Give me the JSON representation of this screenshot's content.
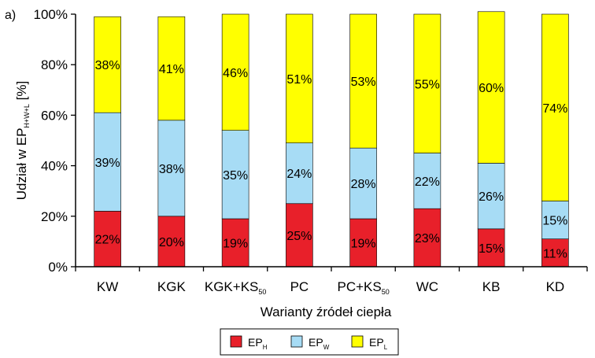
{
  "panel_label": "a)",
  "chart_data": {
    "type": "bar",
    "stacked": true,
    "percent": true,
    "categories": [
      {
        "main": "KW",
        "sub": ""
      },
      {
        "main": "KGK",
        "sub": ""
      },
      {
        "main": "KGK+KS",
        "sub": "50"
      },
      {
        "main": "PC",
        "sub": ""
      },
      {
        "main": "PC+KS",
        "sub": "50"
      },
      {
        "main": "WC",
        "sub": ""
      },
      {
        "main": "KB",
        "sub": ""
      },
      {
        "main": "KD",
        "sub": ""
      }
    ],
    "series": [
      {
        "name_main": "EP",
        "name_sub": "H",
        "color": "#e8202a",
        "values": [
          22,
          20,
          19,
          25,
          19,
          23,
          15,
          11
        ]
      },
      {
        "name_main": "EP",
        "name_sub": "W",
        "color": "#a7dcf5",
        "values": [
          39,
          38,
          35,
          24,
          28,
          22,
          26,
          15
        ]
      },
      {
        "name_main": "EP",
        "name_sub": "L",
        "color": "#ffff00",
        "values": [
          38,
          41,
          46,
          51,
          53,
          55,
          60,
          74
        ]
      }
    ],
    "ylim": [
      0,
      100
    ],
    "yticks": [
      "0%",
      "20%",
      "40%",
      "60%",
      "80%",
      "100%"
    ],
    "ylabel": {
      "main": "Udział w EP",
      "sub": "H+W+L",
      "suffix": " [%]"
    },
    "xlabel": "Warianty źródeł ciepła",
    "grid": false,
    "legend_position": "bottom"
  }
}
